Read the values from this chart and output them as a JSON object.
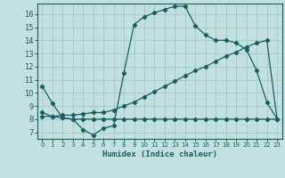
{
  "xlabel": "Humidex (Indice chaleur)",
  "bg_color": "#c2e0e0",
  "grid_color": "#a8cccc",
  "line_color": "#1a5f5f",
  "xlim": [
    -0.5,
    23.5
  ],
  "ylim": [
    6.5,
    16.8
  ],
  "xticks": [
    0,
    1,
    2,
    3,
    4,
    5,
    6,
    7,
    8,
    9,
    10,
    11,
    12,
    13,
    14,
    15,
    16,
    17,
    18,
    19,
    20,
    21,
    22,
    23
  ],
  "yticks": [
    7,
    8,
    9,
    10,
    11,
    12,
    13,
    14,
    15,
    16
  ],
  "line1_x": [
    0,
    1,
    2,
    3,
    4,
    5,
    6,
    7,
    8,
    9,
    10,
    11,
    12,
    13,
    14,
    15,
    16,
    17,
    18,
    19,
    20,
    21,
    22,
    23
  ],
  "line1_y": [
    10.5,
    9.2,
    8.1,
    8.0,
    7.2,
    6.8,
    7.3,
    7.5,
    11.5,
    15.2,
    15.8,
    16.1,
    16.35,
    16.6,
    16.6,
    15.1,
    14.4,
    14.0,
    14.0,
    13.8,
    13.3,
    11.7,
    9.3,
    8.0
  ],
  "line2_x": [
    0,
    1,
    2,
    3,
    4,
    5,
    6,
    7,
    8,
    9,
    10,
    11,
    12,
    13,
    14,
    15,
    16,
    17,
    18,
    19,
    20,
    21,
    22,
    23
  ],
  "line2_y": [
    8.5,
    8.2,
    8.1,
    8.0,
    8.0,
    8.0,
    8.0,
    8.0,
    8.0,
    8.0,
    8.0,
    8.0,
    8.0,
    8.0,
    8.0,
    8.0,
    8.0,
    8.0,
    8.0,
    8.0,
    8.0,
    8.0,
    8.0,
    8.0
  ],
  "line3_x": [
    0,
    1,
    2,
    3,
    4,
    5,
    6,
    7,
    8,
    9,
    10,
    11,
    12,
    13,
    14,
    15,
    16,
    17,
    18,
    19,
    20,
    21,
    22,
    23
  ],
  "line3_y": [
    8.2,
    8.2,
    8.3,
    8.3,
    8.4,
    8.5,
    8.5,
    8.7,
    9.0,
    9.3,
    9.7,
    10.1,
    10.5,
    10.9,
    11.3,
    11.7,
    12.0,
    12.4,
    12.8,
    13.1,
    13.5,
    13.8,
    14.0,
    8.0
  ]
}
